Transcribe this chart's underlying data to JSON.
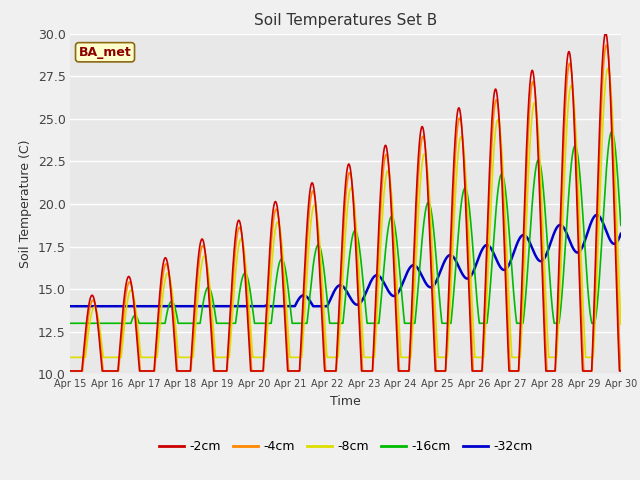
{
  "title": "Soil Temperatures Set B",
  "xlabel": "Time",
  "ylabel": "Soil Temperature (C)",
  "annotation": "BA_met",
  "ylim": [
    10,
    30
  ],
  "xlim": [
    0,
    360
  ],
  "bg_color": "#e8e8e8",
  "fig_color": "#f0f0f0",
  "xtick_labels": [
    "Apr 15",
    "Apr 16",
    "Apr 17",
    "Apr 18",
    "Apr 19",
    "Apr 20",
    "Apr 21",
    "Apr 22",
    "Apr 23",
    "Apr 24",
    "Apr 25",
    "Apr 26",
    "Apr 27",
    "Apr 28",
    "Apr 29",
    "Apr 30"
  ],
  "xtick_positions": [
    0,
    24,
    48,
    72,
    96,
    120,
    144,
    168,
    192,
    216,
    240,
    264,
    288,
    312,
    336,
    360
  ],
  "series": {
    "-2cm": {
      "color": "#cc0000",
      "lw": 1.2
    },
    "-4cm": {
      "color": "#ff8800",
      "lw": 1.2
    },
    "-8cm": {
      "color": "#dddd00",
      "lw": 1.2
    },
    "-16cm": {
      "color": "#00bb00",
      "lw": 1.2
    },
    "-32cm": {
      "color": "#0000cc",
      "lw": 1.8
    }
  },
  "legend_order": [
    "-2cm",
    "-4cm",
    "-8cm",
    "-16cm",
    "-32cm"
  ]
}
